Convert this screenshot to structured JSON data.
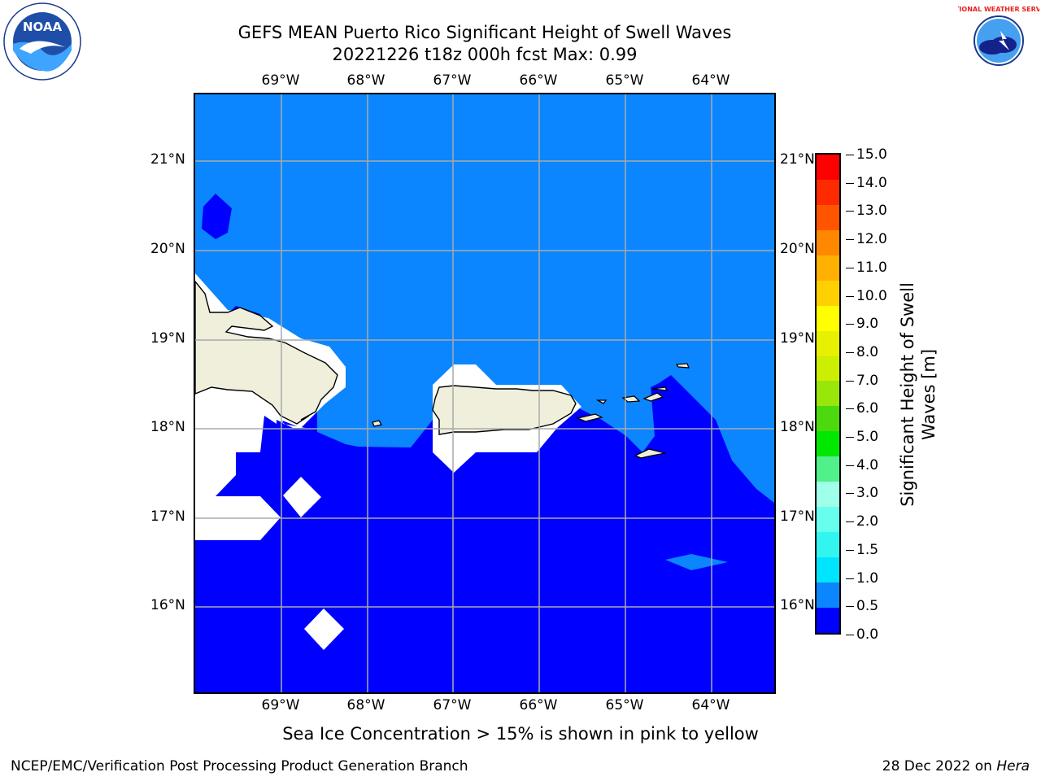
{
  "title": {
    "line1": "GEFS MEAN Puerto Rico Significant Height of Swell Waves",
    "line2": "20221226 t18z 000h fcst   Max: 0.99"
  },
  "map": {
    "lon_labels": [
      "69°W",
      "68°W",
      "67°W",
      "66°W",
      "65°W",
      "64°W"
    ],
    "lat_labels": [
      "21°N",
      "20°N",
      "19°N",
      "18°N",
      "17°N",
      "16°N"
    ],
    "colors": {
      "ocean_low": "#0000ff",
      "ocean_mid": "#0b86ff",
      "land": "#efefdc",
      "no_data": "#ffffff",
      "grid": "#aaaaaa"
    }
  },
  "colorbar": {
    "title_line1": "Significant Height of Swell",
    "title_line2": "Waves [m]",
    "tick_labels": [
      "0.0",
      "0.5",
      "1.0",
      "1.5",
      "2.0",
      "3.0",
      "4.0",
      "5.0",
      "6.0",
      "7.0",
      "8.0",
      "9.0",
      "10.0",
      "11.0",
      "12.0",
      "13.0",
      "14.0",
      "15.0"
    ],
    "colors": [
      "#0000ff",
      "#0b86ff",
      "#00e5ff",
      "#33f5f0",
      "#66ffee",
      "#a0ffe8",
      "#50f08a",
      "#00e800",
      "#4cd90e",
      "#99e60a",
      "#ccee00",
      "#e6f000",
      "#ffff00",
      "#ffd000",
      "#ffb000",
      "#ff8800",
      "#ff5500",
      "#ff2b00",
      "#ff0000"
    ]
  },
  "footer_note": "Sea Ice Concentration > 15% is shown in pink to yellow",
  "credits": {
    "left": "NCEP/EMC/Verification Post Processing Product Generation Branch",
    "right_date": "28 Dec 2022 on",
    "right_host": "Hera"
  },
  "logos": {
    "left": {
      "icon": "noaa-logo-icon",
      "text": "NOAA"
    },
    "right": {
      "icon": "nws-logo-icon",
      "text": "NATIONAL WEATHER SERVICE"
    }
  }
}
